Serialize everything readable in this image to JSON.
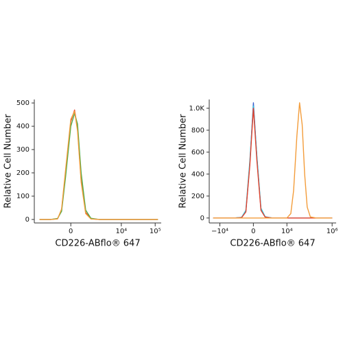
{
  "chart_data": [
    {
      "type": "line",
      "xscale": "symlog",
      "x_label": "CD226-ABflo® 647",
      "y_label": "Relative Cell Number",
      "x": [
        -2500,
        -1000,
        -500,
        -300,
        -150,
        0,
        100,
        200,
        350,
        600,
        1000,
        2000,
        120000
      ],
      "series": [
        {
          "color": "#e8412a",
          "values": [
            0,
            0,
            3,
            40,
            200,
            420,
            470,
            390,
            170,
            30,
            3,
            0,
            0
          ]
        },
        {
          "color": "#4cae4c",
          "values": [
            0,
            0,
            4,
            35,
            180,
            400,
            455,
            410,
            200,
            40,
            5,
            0,
            0
          ]
        },
        {
          "color": "#f39c3a",
          "values": [
            0,
            0,
            2,
            45,
            210,
            430,
            465,
            380,
            160,
            25,
            2,
            0,
            0
          ]
        }
      ],
      "xlim": [
        -3700,
        150000
      ],
      "xticks": [
        0,
        {
          "value": 10000,
          "label": "10⁴"
        },
        {
          "value": 100000,
          "label": "10⁵"
        }
      ],
      "ylim": [
        -15,
        515
      ],
      "yticks": [
        0,
        100,
        200,
        300,
        400,
        500
      ]
    },
    {
      "type": "line",
      "xscale": "symlog",
      "x_label": "CD226-ABflo® 647",
      "y_label": "Relative Cell Number",
      "x": [
        -20000,
        -2000,
        -800,
        -400,
        -150,
        0,
        150,
        400,
        800,
        2000,
        10000,
        15000,
        20000,
        28000,
        37000,
        48000,
        62000,
        80000,
        110000,
        200000,
        1000000
      ],
      "series": [
        {
          "color": "#3a5fcd",
          "values": [
            0,
            0,
            5,
            60,
            500,
            1050,
            550,
            80,
            10,
            0,
            0,
            0,
            0,
            0,
            0,
            0,
            0,
            0,
            0,
            0,
            0
          ]
        },
        {
          "color": "#29c4e0",
          "values": [
            0,
            0,
            6,
            70,
            520,
            1020,
            560,
            90,
            12,
            0,
            0,
            0,
            0,
            0,
            0,
            0,
            0,
            0,
            0,
            0,
            0
          ]
        },
        {
          "color": "#e8412a",
          "values": [
            0,
            0,
            4,
            55,
            480,
            1000,
            520,
            70,
            8,
            0,
            0,
            0,
            0,
            0,
            0,
            0,
            0,
            0,
            0,
            0,
            0
          ]
        },
        {
          "color": "#f39c3a",
          "values": [
            0,
            0,
            0,
            0,
            0,
            0,
            0,
            0,
            0,
            0,
            0,
            40,
            250,
            750,
            1050,
            850,
            400,
            100,
            10,
            0,
            0
          ]
        }
      ],
      "xlim": [
        -30000,
        1500000
      ],
      "xticks": [
        {
          "value": -10000,
          "label": "−10⁴"
        },
        0,
        {
          "value": 10000,
          "label": "10⁴"
        },
        {
          "value": 1000000,
          "label": "10⁶"
        }
      ],
      "ylim": [
        -45,
        1080
      ],
      "yticks": [
        0,
        200,
        400,
        600,
        800,
        {
          "value": 1000,
          "label": "1.0K"
        }
      ]
    }
  ]
}
